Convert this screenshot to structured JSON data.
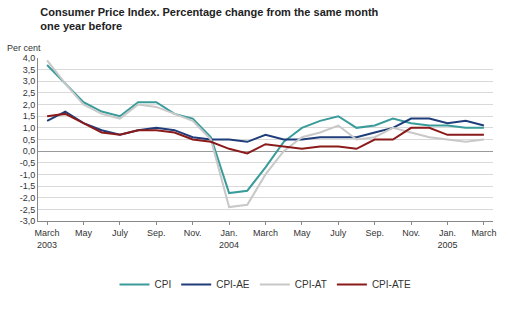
{
  "chart_data": {
    "type": "line",
    "title": "Consumer Price Index. Percentage change from the same month one year before",
    "y_label": "Per cent",
    "categories": [
      "March 2003",
      null,
      "May",
      null,
      "July",
      null,
      "Sep.",
      null,
      "Nov.",
      null,
      "Jan. 2004",
      null,
      "March",
      null,
      "May",
      null,
      "July",
      null,
      "Sep.",
      null,
      "Nov.",
      null,
      "Jan. 2005",
      null,
      "March"
    ],
    "series": [
      {
        "name": "CPI",
        "color": "#3a9c9a",
        "values": [
          3.7,
          2.9,
          2.1,
          1.7,
          1.5,
          2.1,
          2.1,
          1.6,
          1.4,
          0.6,
          -1.8,
          -1.7,
          -0.7,
          0.4,
          1.0,
          1.3,
          1.5,
          1.0,
          1.1,
          1.4,
          1.2,
          1.1,
          1.1,
          1.0,
          1.0
        ]
      },
      {
        "name": "CPI-AE",
        "color": "#1f3d7a",
        "values": [
          1.3,
          1.7,
          1.2,
          0.9,
          0.7,
          0.9,
          1.0,
          0.9,
          0.6,
          0.5,
          0.5,
          0.4,
          0.7,
          0.5,
          0.5,
          0.6,
          0.6,
          0.6,
          0.8,
          1.0,
          1.4,
          1.4,
          1.2,
          1.3,
          1.1
        ]
      },
      {
        "name": "CPI-AT",
        "color": "#c8c8c8",
        "values": [
          3.9,
          2.9,
          2.0,
          1.6,
          1.4,
          2.0,
          1.9,
          1.6,
          1.3,
          0.5,
          -2.4,
          -2.3,
          -1.0,
          0.0,
          0.6,
          0.8,
          1.1,
          0.5,
          0.6,
          1.0,
          0.8,
          0.6,
          0.5,
          0.4,
          0.5
        ]
      },
      {
        "name": "CPI-ATE",
        "color": "#8b1a1a",
        "values": [
          1.5,
          1.6,
          1.2,
          0.8,
          0.7,
          0.9,
          0.9,
          0.8,
          0.5,
          0.4,
          0.1,
          -0.1,
          0.3,
          0.2,
          0.1,
          0.2,
          0.2,
          0.1,
          0.5,
          0.5,
          1.0,
          1.0,
          0.7,
          0.7,
          0.7
        ]
      }
    ],
    "ylim": [
      -3.0,
      4.0
    ],
    "yticks": [
      {
        "value": -3.0,
        "label": "-3,0"
      },
      {
        "value": -2.5,
        "label": "-2,5"
      },
      {
        "value": -2.0,
        "label": "-2,0"
      },
      {
        "value": -1.5,
        "label": "-1,5"
      },
      {
        "value": -1.0,
        "label": "-1,0"
      },
      {
        "value": -0.5,
        "label": "-0,5"
      },
      {
        "value": 0.0,
        "label": "0,0"
      },
      {
        "value": 0.5,
        "label": "0,5"
      },
      {
        "value": 1.0,
        "label": "1,0"
      },
      {
        "value": 1.5,
        "label": "1,5"
      },
      {
        "value": 2.0,
        "label": "2,0"
      },
      {
        "value": 2.5,
        "label": "2,5"
      },
      {
        "value": 3.0,
        "label": "3,0"
      },
      {
        "value": 3.5,
        "label": "3,5"
      },
      {
        "value": 4.0,
        "label": "4,0"
      }
    ],
    "grid": true,
    "legend": "bottom"
  }
}
